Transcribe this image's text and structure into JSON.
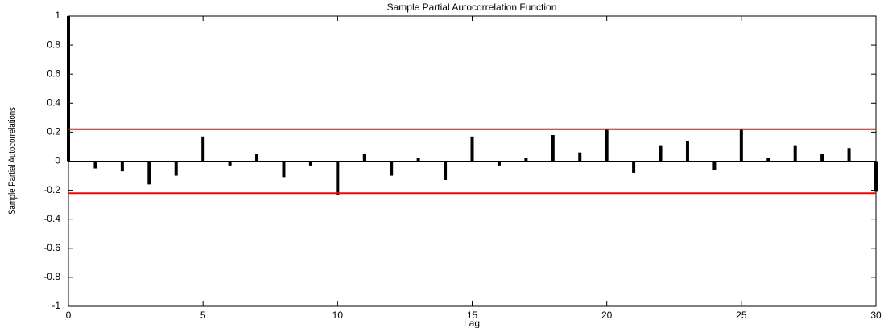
{
  "chart_data": {
    "type": "stem",
    "title": "Sample Partial Autocorrelation Function",
    "xlabel": "Lag",
    "ylabel": "Sample Partial Autocorrelations",
    "x": [
      0,
      1,
      2,
      3,
      4,
      5,
      6,
      7,
      8,
      9,
      10,
      11,
      12,
      13,
      14,
      15,
      16,
      17,
      18,
      19,
      20,
      21,
      22,
      23,
      24,
      25,
      26,
      27,
      28,
      29,
      30
    ],
    "values": [
      1,
      -0.05,
      -0.07,
      -0.16,
      -0.1,
      0.17,
      -0.03,
      0.05,
      -0.11,
      -0.03,
      -0.23,
      0.05,
      -0.1,
      0.02,
      -0.13,
      0.17,
      -0.03,
      0.02,
      0.18,
      0.06,
      0.22,
      -0.08,
      0.11,
      0.14,
      -0.06,
      0.22,
      0.02,
      0.11,
      0.05,
      0.09,
      -0.21
    ],
    "color": "#000000",
    "bounds": [
      0.22,
      -0.22
    ],
    "bound_color": "#ff0000",
    "xlim": [
      0,
      30
    ],
    "xticks": [
      0,
      5,
      10,
      15,
      20,
      25,
      30
    ],
    "ylim": [
      -1,
      1
    ],
    "yticks": [
      -1,
      -0.8,
      -0.6,
      -0.4,
      -0.2,
      0,
      0.2,
      0.4,
      0.6,
      0.8,
      1
    ]
  }
}
